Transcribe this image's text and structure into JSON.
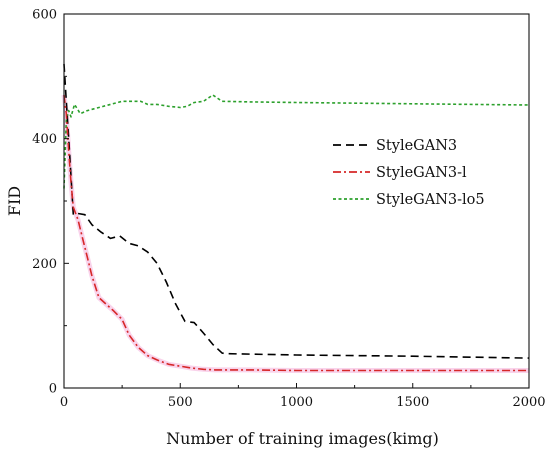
{
  "chart_data": {
    "type": "line",
    "xlabel": "Number of training images(kimg)",
    "ylabel": "FID",
    "xlim": [
      0,
      2000
    ],
    "ylim": [
      0,
      600
    ],
    "x_ticks": [
      0,
      500,
      1000,
      1500,
      2000
    ],
    "y_ticks": [
      0,
      200,
      400,
      600
    ],
    "grid": false,
    "legend_position": "right",
    "series": [
      {
        "name": "StyleGAN3",
        "color": "#000000",
        "dash": "dashed",
        "points": [
          [
            0,
            520
          ],
          [
            10,
            460
          ],
          [
            20,
            400
          ],
          [
            30,
            340
          ],
          [
            40,
            278
          ],
          [
            60,
            280
          ],
          [
            90,
            278
          ],
          [
            120,
            262
          ],
          [
            160,
            250
          ],
          [
            200,
            240
          ],
          [
            240,
            244
          ],
          [
            280,
            232
          ],
          [
            320,
            228
          ],
          [
            360,
            218
          ],
          [
            400,
            200
          ],
          [
            440,
            170
          ],
          [
            480,
            135
          ],
          [
            520,
            107
          ],
          [
            560,
            105
          ],
          [
            600,
            88
          ],
          [
            640,
            70
          ],
          [
            680,
            56
          ],
          [
            700,
            55
          ],
          [
            1000,
            53
          ],
          [
            1500,
            51
          ],
          [
            2000,
            48
          ]
        ]
      },
      {
        "name": "StyleGAN3-l",
        "color": "#d62728",
        "dash": "dashdot",
        "points": [
          [
            0,
            470
          ],
          [
            10,
            440
          ],
          [
            20,
            380
          ],
          [
            30,
            330
          ],
          [
            40,
            290
          ],
          [
            60,
            270
          ],
          [
            80,
            240
          ],
          [
            100,
            210
          ],
          [
            120,
            180
          ],
          [
            150,
            145
          ],
          [
            180,
            135
          ],
          [
            210,
            125
          ],
          [
            250,
            110
          ],
          [
            280,
            85
          ],
          [
            320,
            65
          ],
          [
            360,
            52
          ],
          [
            400,
            45
          ],
          [
            450,
            38
          ],
          [
            500,
            35
          ],
          [
            550,
            32
          ],
          [
            600,
            30
          ],
          [
            650,
            29
          ],
          [
            800,
            29
          ],
          [
            1000,
            28
          ],
          [
            1500,
            28
          ],
          [
            2000,
            28
          ]
        ]
      },
      {
        "name": "StyleGAN3-lo5",
        "color": "#2ca02c",
        "dash": "dotted",
        "points": [
          [
            0,
            320
          ],
          [
            10,
            430
          ],
          [
            20,
            445
          ],
          [
            30,
            435
          ],
          [
            45,
            455
          ],
          [
            70,
            440
          ],
          [
            100,
            445
          ],
          [
            150,
            450
          ],
          [
            200,
            455
          ],
          [
            250,
            460
          ],
          [
            300,
            460
          ],
          [
            330,
            460
          ],
          [
            360,
            455
          ],
          [
            400,
            455
          ],
          [
            450,
            452
          ],
          [
            500,
            450
          ],
          [
            530,
            452
          ],
          [
            560,
            458
          ],
          [
            600,
            460
          ],
          [
            640,
            470
          ],
          [
            680,
            460
          ],
          [
            800,
            459
          ],
          [
            1000,
            458
          ],
          [
            1500,
            456
          ],
          [
            2000,
            454
          ]
        ]
      }
    ]
  }
}
